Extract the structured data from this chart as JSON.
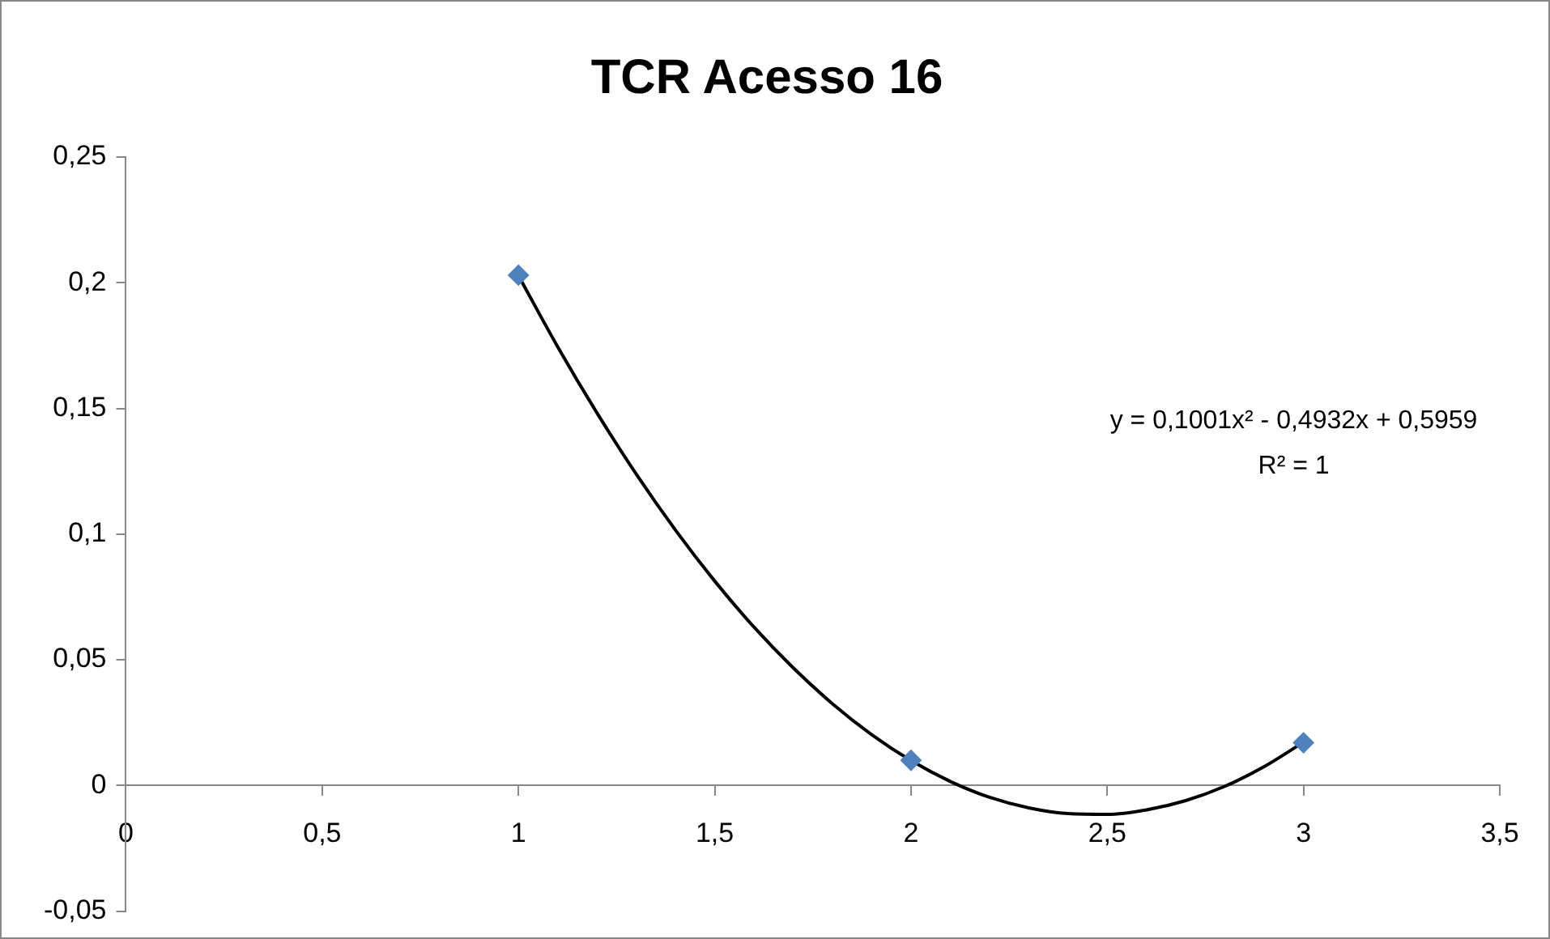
{
  "chart_data": {
    "type": "scatter",
    "title": "TCR Acesso 16",
    "series": [
      {
        "color": "#4f81bd",
        "marker": "diamond",
        "x": [
          1,
          2,
          3
        ],
        "values": [
          0.203,
          0.01,
          0.017
        ]
      },
      {
        "type": "line",
        "color": "#000000",
        "marker": "none",
        "x": [
          1,
          1.1,
          1.2,
          1.3,
          1.4,
          1.5,
          1.6,
          1.7,
          1.8,
          1.9,
          2,
          2.1,
          2.2,
          2.3,
          2.4,
          2.5,
          2.6,
          2.7,
          2.8,
          2.9,
          3
        ],
        "values": [
          0.2028,
          0.1745,
          0.1482,
          0.1239,
          0.1016,
          0.0813,
          0.063,
          0.0468,
          0.0325,
          0.0202,
          0.0099,
          0.0016,
          -0.0047,
          -0.0089,
          -0.0112,
          -0.0115,
          -0.0097,
          -0.006,
          -0.0003,
          0.0075,
          0.0172
        ]
      }
    ],
    "xlim": [
      0,
      3.5
    ],
    "xticks": [
      0,
      {
        "value": 0.5,
        "label": "0,5"
      },
      1,
      {
        "value": 1.5,
        "label": "1,5"
      },
      2,
      {
        "value": 2.5,
        "label": "2,5"
      },
      3,
      {
        "value": 3.5,
        "label": "3,5"
      }
    ],
    "ylim": [
      -0.05,
      0.25
    ],
    "yticks": [
      {
        "value": -0.05,
        "label": "-0,05"
      },
      0,
      {
        "value": 0.05,
        "label": "0,05"
      },
      {
        "value": 0.1,
        "label": "0,1"
      },
      {
        "value": 0.15,
        "label": "0,15"
      },
      {
        "value": 0.2,
        "label": "0,2"
      },
      {
        "value": 0.25,
        "label": "0,25"
      }
    ],
    "annotations": [
      "y = 0,1001x² - 0,4932x + 0,5959",
      "R² = 1"
    ],
    "grid": false,
    "legend": false
  }
}
